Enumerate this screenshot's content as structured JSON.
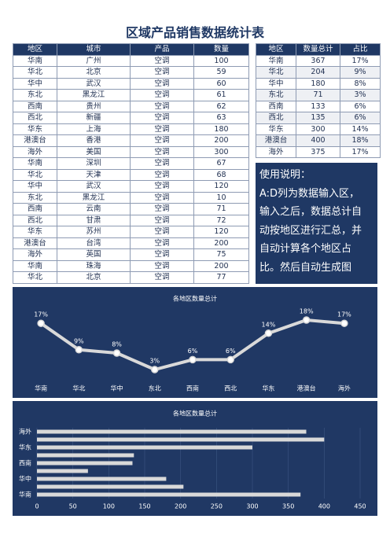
{
  "title": "区域产品销售数据统计表",
  "table": {
    "columns": [
      "地区",
      "城市",
      "产品",
      "数量"
    ],
    "rows": [
      [
        "华南",
        "广州",
        "空调",
        100
      ],
      [
        "华北",
        "北京",
        "空调",
        59
      ],
      [
        "华中",
        "武汉",
        "空调",
        60
      ],
      [
        "东北",
        "黑龙江",
        "空调",
        61
      ],
      [
        "西南",
        "贵州",
        "空调",
        62
      ],
      [
        "西北",
        "新疆",
        "空调",
        63
      ],
      [
        "华东",
        "上海",
        "空调",
        180
      ],
      [
        "港澳台",
        "香港",
        "空调",
        200
      ],
      [
        "海外",
        "美国",
        "空调",
        300
      ],
      [
        "华南",
        "深圳",
        "空调",
        67
      ],
      [
        "华北",
        "天津",
        "空调",
        68
      ],
      [
        "华中",
        "武汉",
        "空调",
        120
      ],
      [
        "东北",
        "黑龙江",
        "空调",
        10
      ],
      [
        "西南",
        "云南",
        "空调",
        71
      ],
      [
        "西北",
        "甘肃",
        "空调",
        72
      ],
      [
        "华东",
        "苏州",
        "空调",
        120
      ],
      [
        "港澳台",
        "台湾",
        "空调",
        200
      ],
      [
        "海外",
        "英国",
        "空调",
        75
      ],
      [
        "华南",
        "珠海",
        "空调",
        200
      ],
      [
        "华北",
        "北京",
        "空调",
        77
      ]
    ]
  },
  "summary": {
    "columns": [
      "地区",
      "数量总计",
      "占比"
    ],
    "rows": [
      [
        "华南",
        367,
        "17%"
      ],
      [
        "华北",
        204,
        "9%"
      ],
      [
        "华中",
        180,
        "8%"
      ],
      [
        "东北",
        71,
        "3%"
      ],
      [
        "西南",
        133,
        "6%"
      ],
      [
        "西北",
        135,
        "6%"
      ],
      [
        "华东",
        300,
        "14%"
      ],
      [
        "港澳台",
        400,
        "18%"
      ],
      [
        "海外",
        375,
        "17%"
      ]
    ]
  },
  "instructions": {
    "heading": "使用说明：",
    "lines": [
      "A:D列为数据输入区，",
      "输入之后，数据总计自",
      "动按地区进行汇总，并",
      "自动计算各个地区占",
      "比。然后自动生成图"
    ]
  },
  "chart_data": [
    {
      "type": "line",
      "title": "各地区数量总计",
      "categories": [
        "华南",
        "华北",
        "华中",
        "东北",
        "西南",
        "西北",
        "华东",
        "港澳台",
        "海外"
      ],
      "values": [
        17,
        9,
        8,
        3,
        6,
        6,
        14,
        18,
        17
      ],
      "value_labels": [
        "17%",
        "9%",
        "8%",
        "3%",
        "6%",
        "6%",
        "14%",
        "18%",
        "17%"
      ],
      "color": "#d9d9d9"
    },
    {
      "type": "bar",
      "orientation": "horizontal",
      "title": "各地区数量总计",
      "categories": [
        "华南",
        null,
        "华中",
        null,
        "西南",
        null,
        "华东",
        null,
        "海外"
      ],
      "values": [
        367,
        204,
        180,
        71,
        133,
        135,
        300,
        400,
        375
      ],
      "color": "#d9d9d9",
      "xlim": [
        0,
        450
      ],
      "xticks": [
        0,
        50,
        100,
        150,
        200,
        250,
        300,
        350,
        400,
        450
      ],
      "grid": true
    }
  ]
}
